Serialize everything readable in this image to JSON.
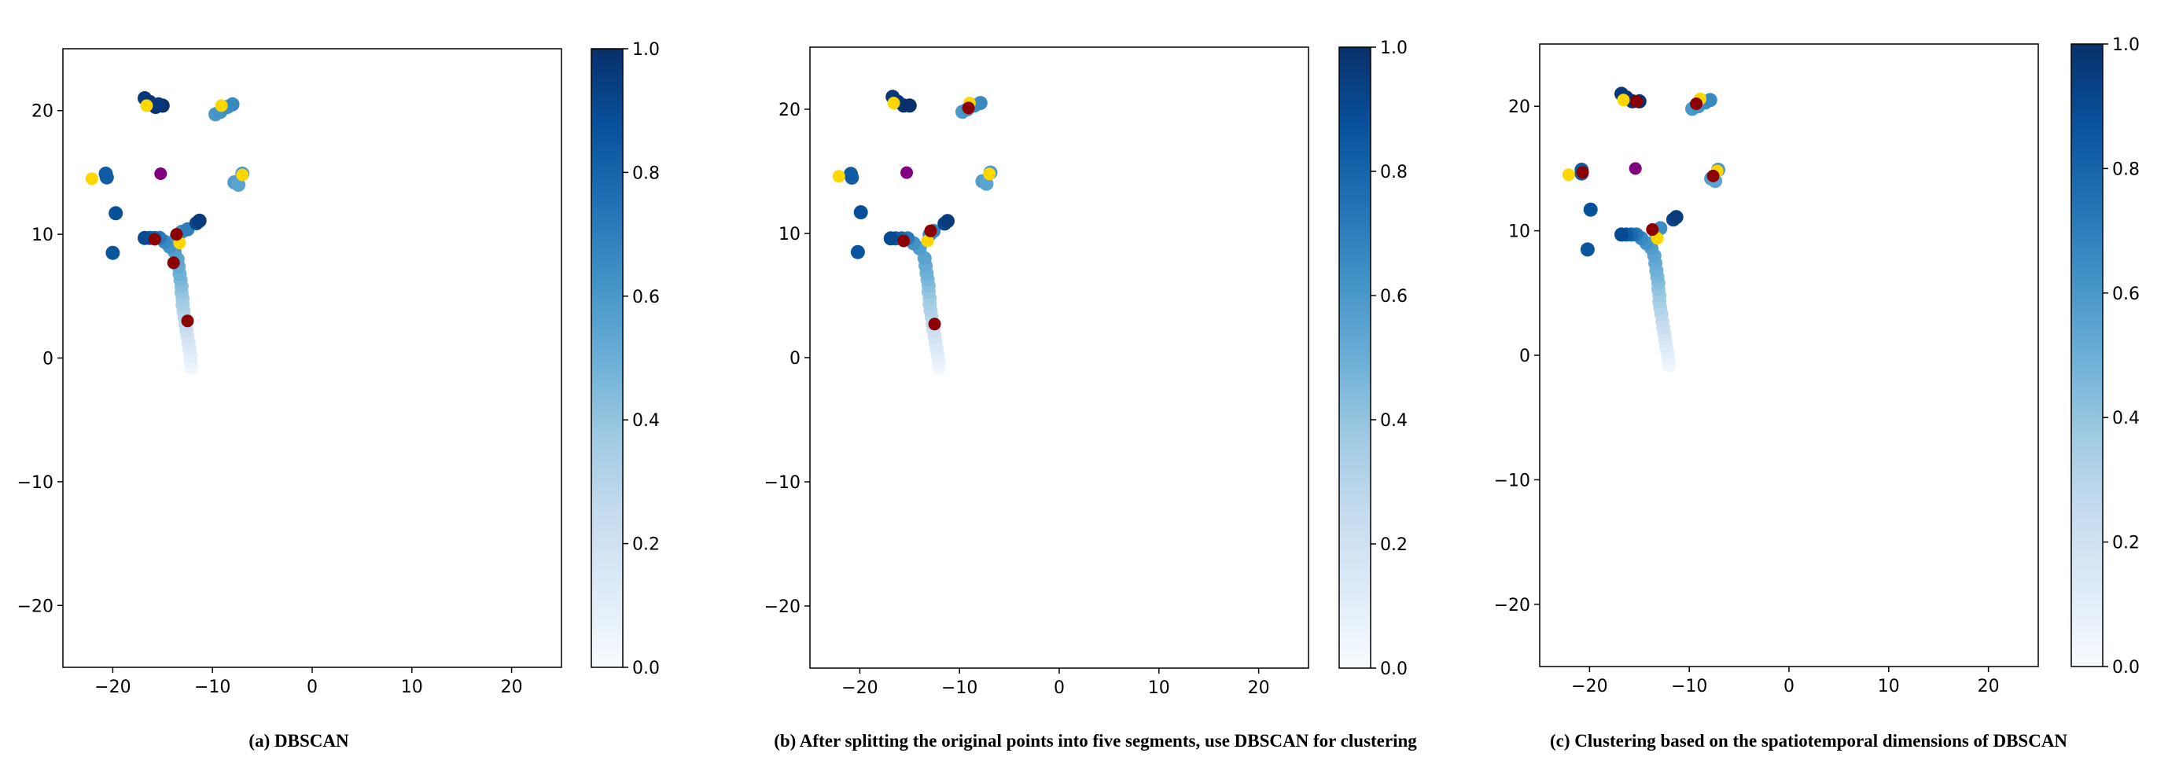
{
  "chart_data": [
    {
      "type": "scatter",
      "caption": "(a)  DBSCAN",
      "xlim": [
        -25,
        25
      ],
      "ylim": [
        -25,
        25
      ],
      "x_ticks": [
        -20,
        -10,
        0,
        10,
        20
      ],
      "y_ticks": [
        -20,
        -10,
        0,
        10,
        20
      ],
      "x_tick_labels": [
        "−20",
        "−10",
        "0",
        "10",
        "20"
      ],
      "y_tick_labels": [
        "−20",
        "−10",
        "0",
        "10",
        "20"
      ],
      "colorbar": {
        "min": 0.0,
        "max": 1.0,
        "ticks": [
          "0.0",
          "0.2",
          "0.4",
          "0.6",
          "0.8",
          "1.0"
        ],
        "cmap": "Blues"
      },
      "points": [
        {
          "x": -12.1,
          "y": -0.8,
          "v": 0.04
        },
        {
          "x": -12.2,
          "y": -0.3,
          "v": 0.07
        },
        {
          "x": -12.2,
          "y": 0.2,
          "v": 0.1
        },
        {
          "x": -12.3,
          "y": 0.7,
          "v": 0.13
        },
        {
          "x": -12.4,
          "y": 1.2,
          "v": 0.16
        },
        {
          "x": -12.5,
          "y": 1.7,
          "v": 0.19
        },
        {
          "x": -12.6,
          "y": 2.2,
          "v": 0.22
        },
        {
          "x": -12.7,
          "y": 2.7,
          "v": 0.25
        },
        {
          "x": -12.8,
          "y": 3.3,
          "v": 0.28
        },
        {
          "x": -12.9,
          "y": 3.8,
          "v": 0.31
        },
        {
          "x": -13.0,
          "y": 4.3,
          "v": 0.34
        },
        {
          "x": -13.0,
          "y": 4.8,
          "v": 0.37
        },
        {
          "x": -13.1,
          "y": 5.3,
          "v": 0.4
        },
        {
          "x": -13.1,
          "y": 5.8,
          "v": 0.43
        },
        {
          "x": -13.2,
          "y": 6.3,
          "v": 0.46
        },
        {
          "x": -13.3,
          "y": 6.8,
          "v": 0.49
        },
        {
          "x": -13.4,
          "y": 7.4,
          "v": 0.52
        },
        {
          "x": -13.5,
          "y": 8.0,
          "v": 0.55
        },
        {
          "x": -13.8,
          "y": 8.6,
          "v": 0.58
        },
        {
          "x": -14.3,
          "y": 9.0,
          "v": 0.62
        },
        {
          "x": -14.8,
          "y": 9.4,
          "v": 0.66
        },
        {
          "x": -13.6,
          "y": 9.8,
          "v": 0.6
        },
        {
          "x": -13.1,
          "y": 10.2,
          "v": 0.64
        },
        {
          "x": -15.3,
          "y": 9.7,
          "v": 0.72
        },
        {
          "x": -15.8,
          "y": 9.7,
          "v": 0.78
        },
        {
          "x": -16.3,
          "y": 9.7,
          "v": 0.84
        },
        {
          "x": -16.8,
          "y": 9.7,
          "v": 0.9
        },
        {
          "x": -12.5,
          "y": 10.4,
          "v": 0.7
        },
        {
          "x": -11.6,
          "y": 10.9,
          "v": 0.92
        },
        {
          "x": -11.3,
          "y": 11.1,
          "v": 0.96
        },
        {
          "x": -19.7,
          "y": 11.7,
          "v": 0.88
        },
        {
          "x": -20.0,
          "y": 8.5,
          "v": 0.86
        },
        {
          "x": -20.6,
          "y": 14.6,
          "v": 0.82
        },
        {
          "x": -20.7,
          "y": 14.9,
          "v": 0.84
        },
        {
          "x": -7.8,
          "y": 14.2,
          "v": 0.58
        },
        {
          "x": -7.4,
          "y": 14.0,
          "v": 0.55
        },
        {
          "x": -7.0,
          "y": 14.9,
          "v": 0.6
        },
        {
          "x": -16.8,
          "y": 21.0,
          "v": 0.97
        },
        {
          "x": -16.3,
          "y": 20.7,
          "v": 0.98
        },
        {
          "x": -15.7,
          "y": 20.3,
          "v": 0.99
        },
        {
          "x": -15.0,
          "y": 20.4,
          "v": 1.0
        },
        {
          "x": -15.4,
          "y": 20.5,
          "v": 0.97
        },
        {
          "x": -9.7,
          "y": 19.7,
          "v": 0.6
        },
        {
          "x": -9.2,
          "y": 19.9,
          "v": 0.62
        },
        {
          "x": -8.5,
          "y": 20.3,
          "v": 0.64
        },
        {
          "x": -8.0,
          "y": 20.5,
          "v": 0.66
        }
      ],
      "highlight_points": [
        {
          "x": -22.1,
          "y": 14.5,
          "color": "#ffd700"
        },
        {
          "x": -16.6,
          "y": 20.4,
          "color": "#ffd700"
        },
        {
          "x": -9.1,
          "y": 20.4,
          "color": "#ffd700"
        },
        {
          "x": -7.0,
          "y": 14.8,
          "color": "#ffd700"
        },
        {
          "x": -13.3,
          "y": 9.3,
          "color": "#ffd700"
        },
        {
          "x": -15.2,
          "y": 14.9,
          "color": "#800080"
        },
        {
          "x": -15.8,
          "y": 9.6,
          "color": "#8b0000"
        },
        {
          "x": -13.6,
          "y": 10.0,
          "color": "#8b0000"
        },
        {
          "x": -13.9,
          "y": 7.7,
          "color": "#8b0000"
        },
        {
          "x": -12.5,
          "y": 3.0,
          "color": "#8b0000"
        }
      ]
    },
    {
      "type": "scatter",
      "caption": "(b) After splitting the original points into five segments, use DBSCAN for clustering",
      "xlim": [
        -25,
        25
      ],
      "ylim": [
        -25,
        25
      ],
      "x_ticks": [
        -20,
        -10,
        0,
        10,
        20
      ],
      "y_ticks": [
        -20,
        -10,
        0,
        10,
        20
      ],
      "x_tick_labels": [
        "−20",
        "−10",
        "0",
        "10",
        "20"
      ],
      "y_tick_labels": [
        "−20",
        "−10",
        "0",
        "10",
        "20"
      ],
      "colorbar": {
        "min": 0.0,
        "max": 1.0,
        "ticks": [
          "0.0",
          "0.2",
          "0.4",
          "0.6",
          "0.8",
          "1.0"
        ],
        "cmap": "Blues"
      },
      "points": [
        {
          "x": -12.0,
          "y": -0.8,
          "v": 0.04
        },
        {
          "x": -12.1,
          "y": -0.3,
          "v": 0.07
        },
        {
          "x": -12.2,
          "y": 0.2,
          "v": 0.1
        },
        {
          "x": -12.3,
          "y": 0.7,
          "v": 0.13
        },
        {
          "x": -12.4,
          "y": 1.2,
          "v": 0.16
        },
        {
          "x": -12.5,
          "y": 1.7,
          "v": 0.19
        },
        {
          "x": -12.6,
          "y": 2.2,
          "v": 0.22
        },
        {
          "x": -12.7,
          "y": 2.7,
          "v": 0.25
        },
        {
          "x": -12.8,
          "y": 3.3,
          "v": 0.28
        },
        {
          "x": -12.9,
          "y": 3.8,
          "v": 0.31
        },
        {
          "x": -13.0,
          "y": 4.3,
          "v": 0.34
        },
        {
          "x": -13.0,
          "y": 4.8,
          "v": 0.37
        },
        {
          "x": -13.1,
          "y": 5.3,
          "v": 0.4
        },
        {
          "x": -13.1,
          "y": 5.8,
          "v": 0.43
        },
        {
          "x": -13.2,
          "y": 6.3,
          "v": 0.46
        },
        {
          "x": -13.3,
          "y": 6.8,
          "v": 0.49
        },
        {
          "x": -13.4,
          "y": 7.4,
          "v": 0.52
        },
        {
          "x": -13.5,
          "y": 8.0,
          "v": 0.55
        },
        {
          "x": -14.0,
          "y": 8.8,
          "v": 0.58
        },
        {
          "x": -14.6,
          "y": 9.2,
          "v": 0.62
        },
        {
          "x": -13.0,
          "y": 9.9,
          "v": 0.65
        },
        {
          "x": -12.6,
          "y": 10.2,
          "v": 0.68
        },
        {
          "x": -15.2,
          "y": 9.6,
          "v": 0.72
        },
        {
          "x": -15.8,
          "y": 9.6,
          "v": 0.78
        },
        {
          "x": -16.4,
          "y": 9.6,
          "v": 0.84
        },
        {
          "x": -16.9,
          "y": 9.6,
          "v": 0.9
        },
        {
          "x": -11.5,
          "y": 10.8,
          "v": 0.92
        },
        {
          "x": -11.2,
          "y": 11.0,
          "v": 0.96
        },
        {
          "x": -19.9,
          "y": 11.7,
          "v": 0.88
        },
        {
          "x": -20.2,
          "y": 8.5,
          "v": 0.86
        },
        {
          "x": -20.8,
          "y": 14.5,
          "v": 0.82
        },
        {
          "x": -20.9,
          "y": 14.8,
          "v": 0.84
        },
        {
          "x": -7.7,
          "y": 14.2,
          "v": 0.58
        },
        {
          "x": -7.3,
          "y": 14.0,
          "v": 0.55
        },
        {
          "x": -6.9,
          "y": 14.9,
          "v": 0.6
        },
        {
          "x": -16.7,
          "y": 21.0,
          "v": 0.97
        },
        {
          "x": -16.2,
          "y": 20.6,
          "v": 0.98
        },
        {
          "x": -15.6,
          "y": 20.3,
          "v": 0.99
        },
        {
          "x": -15.0,
          "y": 20.3,
          "v": 1.0
        },
        {
          "x": -9.7,
          "y": 19.8,
          "v": 0.6
        },
        {
          "x": -9.2,
          "y": 20.0,
          "v": 0.62
        },
        {
          "x": -8.5,
          "y": 20.3,
          "v": 0.64
        },
        {
          "x": -7.9,
          "y": 20.5,
          "v": 0.66
        }
      ],
      "highlight_points": [
        {
          "x": -22.1,
          "y": 14.6,
          "color": "#ffd700"
        },
        {
          "x": -16.6,
          "y": 20.5,
          "color": "#ffd700"
        },
        {
          "x": -9.0,
          "y": 20.5,
          "color": "#ffd700"
        },
        {
          "x": -7.0,
          "y": 14.8,
          "color": "#ffd700"
        },
        {
          "x": -13.2,
          "y": 9.4,
          "color": "#ffd700"
        },
        {
          "x": -15.3,
          "y": 14.9,
          "color": "#800080"
        },
        {
          "x": -15.6,
          "y": 9.4,
          "color": "#8b0000"
        },
        {
          "x": -12.9,
          "y": 10.2,
          "color": "#8b0000"
        },
        {
          "x": -9.1,
          "y": 20.1,
          "color": "#8b0000"
        },
        {
          "x": -12.5,
          "y": 2.7,
          "color": "#8b0000"
        }
      ]
    },
    {
      "type": "scatter",
      "caption": "(c) Clustering based on the spatiotemporal dimensions of DBSCAN",
      "xlim": [
        -25,
        25
      ],
      "ylim": [
        -25,
        25
      ],
      "x_ticks": [
        -20,
        -10,
        0,
        10,
        20
      ],
      "y_ticks": [
        -20,
        -10,
        0,
        10,
        20
      ],
      "x_tick_labels": [
        "−20",
        "−10",
        "0",
        "10",
        "20"
      ],
      "y_tick_labels": [
        "−20",
        "−10",
        "0",
        "10",
        "20"
      ],
      "colorbar": {
        "min": 0.0,
        "max": 1.0,
        "ticks": [
          "0.0",
          "0.2",
          "0.4",
          "0.6",
          "0.8",
          "1.0"
        ],
        "cmap": "Blues"
      },
      "points": [
        {
          "x": -12.0,
          "y": -0.8,
          "v": 0.04
        },
        {
          "x": -12.1,
          "y": -0.3,
          "v": 0.07
        },
        {
          "x": -12.2,
          "y": 0.2,
          "v": 0.1
        },
        {
          "x": -12.3,
          "y": 0.7,
          "v": 0.13
        },
        {
          "x": -12.4,
          "y": 1.2,
          "v": 0.16
        },
        {
          "x": -12.5,
          "y": 1.7,
          "v": 0.19
        },
        {
          "x": -12.6,
          "y": 2.2,
          "v": 0.22
        },
        {
          "x": -12.7,
          "y": 2.7,
          "v": 0.25
        },
        {
          "x": -12.8,
          "y": 3.3,
          "v": 0.28
        },
        {
          "x": -12.9,
          "y": 3.8,
          "v": 0.31
        },
        {
          "x": -13.0,
          "y": 4.3,
          "v": 0.34
        },
        {
          "x": -13.0,
          "y": 4.8,
          "v": 0.37
        },
        {
          "x": -13.1,
          "y": 5.3,
          "v": 0.4
        },
        {
          "x": -13.1,
          "y": 5.8,
          "v": 0.43
        },
        {
          "x": -13.2,
          "y": 6.3,
          "v": 0.46
        },
        {
          "x": -13.3,
          "y": 6.8,
          "v": 0.49
        },
        {
          "x": -13.4,
          "y": 7.4,
          "v": 0.52
        },
        {
          "x": -13.5,
          "y": 8.0,
          "v": 0.55
        },
        {
          "x": -13.8,
          "y": 8.6,
          "v": 0.58
        },
        {
          "x": -14.3,
          "y": 9.0,
          "v": 0.62
        },
        {
          "x": -14.8,
          "y": 9.4,
          "v": 0.66
        },
        {
          "x": -13.4,
          "y": 9.9,
          "v": 0.6
        },
        {
          "x": -12.9,
          "y": 10.2,
          "v": 0.64
        },
        {
          "x": -15.3,
          "y": 9.7,
          "v": 0.72
        },
        {
          "x": -15.8,
          "y": 9.7,
          "v": 0.78
        },
        {
          "x": -16.3,
          "y": 9.7,
          "v": 0.84
        },
        {
          "x": -16.8,
          "y": 9.7,
          "v": 0.9
        },
        {
          "x": -11.6,
          "y": 10.9,
          "v": 0.92
        },
        {
          "x": -11.3,
          "y": 11.1,
          "v": 0.96
        },
        {
          "x": -19.9,
          "y": 11.7,
          "v": 0.88
        },
        {
          "x": -20.2,
          "y": 8.5,
          "v": 0.86
        },
        {
          "x": -20.8,
          "y": 14.6,
          "v": 0.82
        },
        {
          "x": -20.8,
          "y": 14.9,
          "v": 0.84
        },
        {
          "x": -7.8,
          "y": 14.2,
          "v": 0.58
        },
        {
          "x": -7.4,
          "y": 14.0,
          "v": 0.55
        },
        {
          "x": -7.1,
          "y": 14.9,
          "v": 0.6
        },
        {
          "x": -16.8,
          "y": 21.0,
          "v": 0.97
        },
        {
          "x": -16.3,
          "y": 20.7,
          "v": 0.98
        },
        {
          "x": -15.7,
          "y": 20.4,
          "v": 0.99
        },
        {
          "x": -15.0,
          "y": 20.4,
          "v": 1.0
        },
        {
          "x": -9.7,
          "y": 19.8,
          "v": 0.6
        },
        {
          "x": -9.1,
          "y": 20.0,
          "v": 0.62
        },
        {
          "x": -8.4,
          "y": 20.3,
          "v": 0.64
        },
        {
          "x": -7.9,
          "y": 20.5,
          "v": 0.66
        }
      ],
      "highlight_points": [
        {
          "x": -22.1,
          "y": 14.5,
          "color": "#ffd700"
        },
        {
          "x": -16.6,
          "y": 20.5,
          "color": "#ffd700"
        },
        {
          "x": -8.9,
          "y": 20.6,
          "color": "#ffd700"
        },
        {
          "x": -7.2,
          "y": 14.8,
          "color": "#ffd700"
        },
        {
          "x": -13.2,
          "y": 9.4,
          "color": "#ffd700"
        },
        {
          "x": -15.4,
          "y": 15.0,
          "color": "#800080"
        },
        {
          "x": -20.7,
          "y": 14.7,
          "color": "#8b0000"
        },
        {
          "x": -15.3,
          "y": 20.4,
          "color": "#8b0000"
        },
        {
          "x": -13.7,
          "y": 10.1,
          "color": "#8b0000"
        },
        {
          "x": -9.3,
          "y": 20.2,
          "color": "#8b0000"
        },
        {
          "x": -7.6,
          "y": 14.4,
          "color": "#8b0000"
        }
      ]
    }
  ]
}
